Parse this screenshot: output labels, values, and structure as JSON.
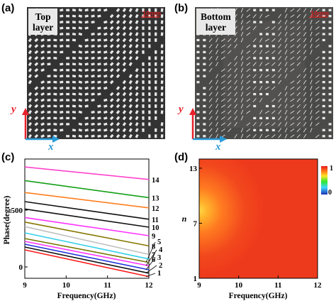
{
  "panels": {
    "a": {
      "label": "(a)",
      "badge_line1": "Top",
      "badge_line2": "layer",
      "scale_text": "10mm",
      "axis_y": "y",
      "axis_x": "x"
    },
    "b": {
      "label": "(b)",
      "badge_line1": "Bottom",
      "badge_line2": "layer",
      "scale_text": "10mm",
      "axis_y": "y",
      "axis_x": "x"
    },
    "c": {
      "label": "(c)"
    },
    "d": {
      "label": "(d)"
    }
  },
  "colors": {
    "photo_background": "#3a3a3a",
    "element_white": "#e8e8e8",
    "axis_red": "#e8202a",
    "axis_blue": "#2a9ad6",
    "scale_red": "#d21c1c"
  },
  "chart_data": [
    {
      "id": "c",
      "type": "line",
      "xlabel": "Frequency(GHz)",
      "ylabel": "Phase(degree)",
      "xlim": [
        9,
        12
      ],
      "ylim": [
        -100,
        950
      ],
      "xticks": [
        9,
        10,
        11,
        12
      ],
      "yticks": [
        0,
        500
      ],
      "series": [
        {
          "name": "1",
          "color": "#ff1a1a",
          "x": [
            9,
            12
          ],
          "y": [
            150,
            -85
          ]
        },
        {
          "name": "2",
          "color": "#101010",
          "x": [
            9,
            12
          ],
          "y": [
            175,
            -55
          ]
        },
        {
          "name": "3",
          "color": "#2233dd",
          "x": [
            9,
            12
          ],
          "y": [
            200,
            -25
          ]
        },
        {
          "name": "4",
          "color": "#ff33ff",
          "x": [
            9,
            12
          ],
          "y": [
            225,
            10
          ]
        },
        {
          "name": "5",
          "color": "#777700",
          "x": [
            9,
            12
          ],
          "y": [
            250,
            40
          ]
        },
        {
          "name": "6",
          "color": "#36d0ea",
          "x": [
            9,
            12
          ],
          "y": [
            300,
            70
          ]
        },
        {
          "name": "7",
          "color": "#c0c0c0",
          "x": [
            9,
            12
          ],
          "y": [
            355,
            110
          ]
        },
        {
          "name": "8",
          "color": "#887700",
          "x": [
            9,
            12
          ],
          "y": [
            395,
            185
          ]
        },
        {
          "name": "9",
          "color": "#ff33ff",
          "x": [
            9,
            12
          ],
          "y": [
            435,
            275
          ]
        },
        {
          "name": "10",
          "color": "#101010",
          "x": [
            9,
            12
          ],
          "y": [
            510,
            350
          ]
        },
        {
          "name": "11",
          "color": "#101010",
          "x": [
            9,
            12
          ],
          "y": [
            575,
            420
          ]
        },
        {
          "name": "12",
          "color": "#ff7f1f",
          "x": [
            9,
            12
          ],
          "y": [
            655,
            520
          ]
        },
        {
          "name": "13",
          "color": "#16a019",
          "x": [
            9,
            12
          ],
          "y": [
            760,
            610
          ]
        },
        {
          "name": "14",
          "color": "#ff44cc",
          "x": [
            9,
            12
          ],
          "y": [
            880,
            770
          ]
        }
      ]
    },
    {
      "id": "d",
      "type": "heatmap",
      "xlabel": "Frequency(GHz)",
      "ylabel": "n",
      "xlim": [
        9,
        12
      ],
      "ylim": [
        1,
        14
      ],
      "xticks": [
        9,
        10,
        11,
        12
      ],
      "yticks": [
        1,
        7,
        13
      ],
      "colorbar": {
        "min_label": "0",
        "max_label": "1",
        "stops": [
          "#1a2fb4",
          "#3fd7ff",
          "#2ee62e",
          "#ffe52a",
          "#ff7a1a",
          "#e81a1a"
        ]
      },
      "base_color": "#ee3a1c",
      "hotspot": {
        "x": 9.0,
        "y": 9.5,
        "peak_color": "#ffd84a"
      }
    }
  ]
}
